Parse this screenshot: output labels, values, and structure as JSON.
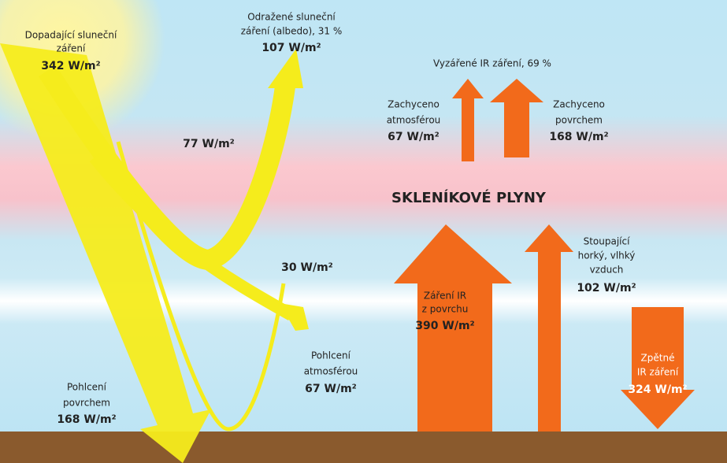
{
  "title": "SKLENÍKOVÉ PLYNY",
  "labels": [
    {
      "lines": [
        "Dopadající sluneční",
        "záření"
      ],
      "value": "342 W/m²"
    },
    {
      "lines": [
        "Odražené sluneční",
        "záření (albedo), 31 %"
      ],
      "value": "107 W/m²"
    },
    {
      "lines": [],
      "value": "77 W/m²"
    },
    {
      "lines": [],
      "value": "30 W/m²"
    },
    {
      "lines": [
        "Pohlcení",
        "atmosférou"
      ],
      "value": "67 W/m²"
    },
    {
      "lines": [
        "Pohlcení",
        "povrchem"
      ],
      "value": "168 W/m²"
    },
    {
      "lines": [
        "Vyzářené IR záření, 69 %"
      ],
      "value": null
    },
    {
      "lines": [
        "Zachyceno",
        "atmosférou"
      ],
      "value": "67 W/m²"
    },
    {
      "lines": [
        "Zachyceno",
        "povrchem"
      ],
      "value": "168 W/m²"
    },
    {
      "lines": [
        "Záření IR",
        "z povrchu"
      ],
      "value": "390 W/m²"
    },
    {
      "lines": [
        "Stoupající",
        "horký, vlhký",
        "vzduch"
      ],
      "value": "102 W/m²"
    },
    {
      "lines": [
        "Zpětné",
        "IR záření"
      ],
      "value": "324 W/m²"
    }
  ]
}
